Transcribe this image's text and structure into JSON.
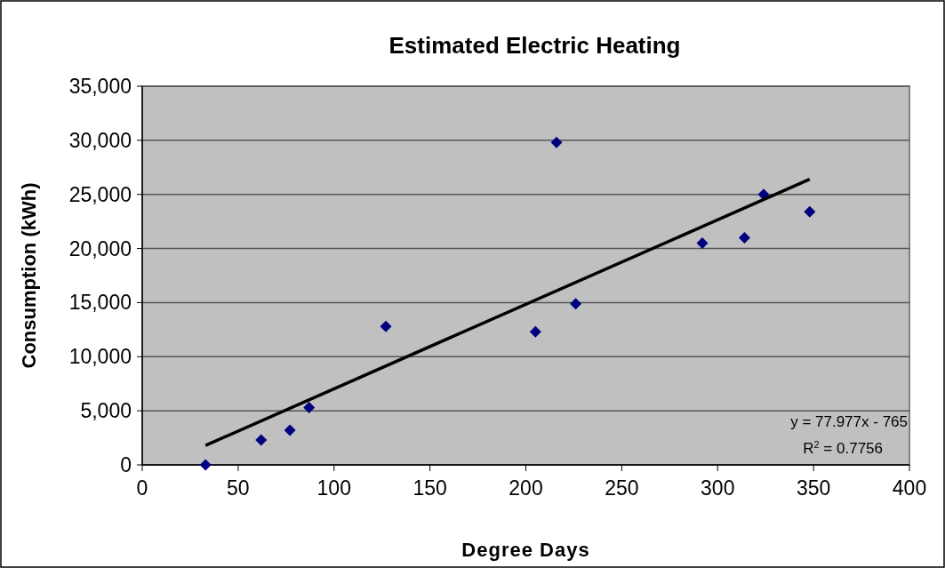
{
  "chart_data": {
    "type": "scatter",
    "title": "Estimated Electric Heating",
    "xlabel": "Degree Days",
    "ylabel": "Consumption (kWh)",
    "xlim": [
      0,
      400
    ],
    "xticks": [
      0,
      50,
      100,
      150,
      200,
      250,
      300,
      350,
      400
    ],
    "ylim": [
      0,
      35000
    ],
    "yticks": [
      {
        "value": 0,
        "label": "0"
      },
      {
        "value": 5000,
        "label": "5,000"
      },
      {
        "value": 10000,
        "label": "10,000"
      },
      {
        "value": 15000,
        "label": "15,000"
      },
      {
        "value": 20000,
        "label": "20,000"
      },
      {
        "value": 25000,
        "label": "25,000"
      },
      {
        "value": 30000,
        "label": "30,000"
      },
      {
        "value": 35000,
        "label": "35,000"
      }
    ],
    "grid": "y",
    "series": [
      {
        "marker": "diamond",
        "color": "#000080",
        "x": [
          33,
          62,
          77,
          87,
          127,
          205,
          216,
          226,
          292,
          314,
          324,
          348
        ],
        "values": [
          0,
          2300,
          3200,
          5300,
          12800,
          12300,
          29800,
          14900,
          20500,
          21000,
          25000,
          23400
        ]
      },
      {
        "type": "line",
        "marker": "none",
        "color": "#000000",
        "x": [
          33,
          348
        ],
        "values": [
          1800,
          26400
        ]
      }
    ],
    "annotations": [
      "y = 77.977x - 765",
      "R$^{2}$ = 0.7756"
    ]
  }
}
